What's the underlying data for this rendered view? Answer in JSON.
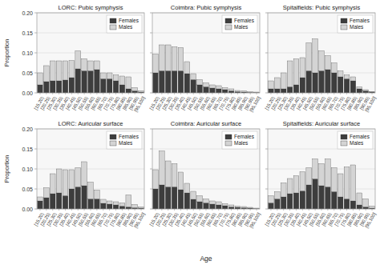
{
  "chart_data": [
    {
      "type": "bar",
      "stacked": true,
      "title": "LORC: Pubic symphysis",
      "y_label": "Proportion",
      "categories": [
        "[15,20)",
        "[20,25)",
        "[25,30)",
        "[30,35)",
        "[35,40)",
        "[40,45)",
        "[45,50)",
        "[50,55)",
        "[55,60)",
        "[60,65)",
        "[65,70)",
        "[70,75)",
        "[75,80)",
        "[80,85)",
        "[85,90)",
        "[90,95)",
        "[95,100]"
      ],
      "series": [
        {
          "name": "Females",
          "color": "#3d3d3d",
          "values": [
            0.02,
            0.028,
            0.03,
            0.03,
            0.032,
            0.038,
            0.06,
            0.055,
            0.055,
            0.058,
            0.035,
            0.035,
            0.03,
            0.02,
            0.01,
            0.005,
            0.002
          ]
        },
        {
          "name": "Males",
          "color": "#d4d4d4",
          "values": [
            0.03,
            0.04,
            0.05,
            0.05,
            0.048,
            0.043,
            0.045,
            0.03,
            0.025,
            0.022,
            0.015,
            0.015,
            0.015,
            0.022,
            0.03,
            0.008,
            0.003
          ]
        }
      ],
      "ylim": [
        0,
        0.2
      ],
      "yticks": [
        {
          "value": 0,
          "label": "0.00"
        },
        0.05,
        {
          "value": 0.1,
          "label": "0.10"
        },
        0.15,
        {
          "value": 0.2,
          "label": "0.20"
        }
      ],
      "grid": true,
      "legend": "upper right"
    },
    {
      "type": "bar",
      "stacked": true,
      "title": "Coimbra: Pubic symphysis",
      "tick_labels": "x",
      "categories": [
        "[15,20)",
        "[20,25)",
        "[25,30)",
        "[30,35)",
        "[35,40)",
        "[40,45)",
        "[45,50)",
        "[50,55)",
        "[55,60)",
        "[60,65)",
        "[65,70)",
        "[70,75)",
        "[75,80)",
        "[80,85)",
        "[85,90)",
        "[90,95)",
        "[95,100]"
      ],
      "series": [
        {
          "name": "Females",
          "color": "#3d3d3d",
          "values": [
            0.05,
            0.055,
            0.055,
            0.055,
            0.055,
            0.048,
            0.033,
            0.02,
            0.015,
            0.012,
            0.01,
            0.008,
            0.005,
            0.003,
            0.002,
            0.001,
            0.001
          ]
        },
        {
          "name": "Males",
          "color": "#d4d4d4",
          "values": [
            0.047,
            0.065,
            0.065,
            0.06,
            0.058,
            0.03,
            0.015,
            0.013,
            0.01,
            0.008,
            0.008,
            0.005,
            0.005,
            0.003,
            0.003,
            0.002,
            0.001
          ]
        }
      ],
      "ylim": [
        0,
        0.2
      ],
      "yticks": [
        0,
        0.05,
        0.1,
        0.15,
        0.2
      ],
      "grid": true,
      "legend": "upper right"
    },
    {
      "type": "bar",
      "stacked": true,
      "title": "Spitalfields: Pubic symphysis",
      "tick_labels": "x",
      "categories": [
        "[15,20)",
        "[20,25)",
        "[25,30)",
        "[30,35)",
        "[35,40)",
        "[40,45)",
        "[45,50)",
        "[50,55)",
        "[55,60)",
        "[60,65)",
        "[65,70)",
        "[70,75)",
        "[75,80)",
        "[80,85)",
        "[85,90)",
        "[90,95)",
        "[95,100]"
      ],
      "series": [
        {
          "name": "Females",
          "color": "#3d3d3d",
          "values": [
            0.01,
            0.01,
            0.01,
            0.015,
            0.02,
            0.038,
            0.055,
            0.05,
            0.055,
            0.058,
            0.05,
            0.04,
            0.035,
            0.03,
            0.01,
            0.005,
            0.002
          ]
        },
        {
          "name": "Males",
          "color": "#d4d4d4",
          "values": [
            0.02,
            0.028,
            0.04,
            0.065,
            0.065,
            0.05,
            0.07,
            0.085,
            0.05,
            0.035,
            0.025,
            0.015,
            0.01,
            0.01,
            0.005,
            0.003,
            0.001
          ]
        }
      ],
      "ylim": [
        0,
        0.2
      ],
      "yticks": [
        0,
        0.05,
        0.1,
        0.15,
        0.2
      ],
      "grid": true,
      "legend": "upper right"
    },
    {
      "type": "bar",
      "stacked": true,
      "title": "LORC: Auricular surface",
      "y_label": "Proportion",
      "categories": [
        "[15,20)",
        "[20,25)",
        "[25,30)",
        "[30,35)",
        "[35,40)",
        "[40,45)",
        "[45,50)",
        "[50,55)",
        "[55,60)",
        "[60,65)",
        "[65,70)",
        "[70,75)",
        "[75,80)",
        "[80,85)",
        "[85,90)",
        "[90,95)",
        "[95,100]"
      ],
      "series": [
        {
          "name": "Females",
          "color": "#3d3d3d",
          "values": [
            0.02,
            0.028,
            0.038,
            0.04,
            0.033,
            0.05,
            0.055,
            0.058,
            0.025,
            0.025,
            0.014,
            0.012,
            0.01,
            0.007,
            0.005,
            0.003,
            0.002
          ]
        },
        {
          "name": "Males",
          "color": "#d4d4d4",
          "values": [
            0.01,
            0.025,
            0.05,
            0.06,
            0.065,
            0.048,
            0.048,
            0.06,
            0.042,
            0.022,
            0.01,
            0.008,
            0.008,
            0.008,
            0.03,
            0.008,
            0.003
          ]
        }
      ],
      "ylim": [
        0,
        0.2
      ],
      "yticks": [
        {
          "value": 0,
          "label": "0.00"
        },
        0.05,
        {
          "value": 0.1,
          "label": "0.10"
        },
        0.15,
        {
          "value": 0.2,
          "label": "0.20"
        }
      ],
      "grid": true,
      "legend": "upper right"
    },
    {
      "type": "bar",
      "stacked": true,
      "title": "Coimbra: Auricular surface",
      "x_label": "Age",
      "tick_labels": "x",
      "categories": [
        "[15,20)",
        "[20,25)",
        "[25,30)",
        "[30,35)",
        "[35,40)",
        "[40,45)",
        "[45,50)",
        "[50,55)",
        "[55,60)",
        "[60,65)",
        "[65,70)",
        "[70,75)",
        "[75,80)",
        "[80,85)",
        "[85,90)",
        "[90,95)",
        "[95,100]"
      ],
      "series": [
        {
          "name": "Females",
          "color": "#3d3d3d",
          "values": [
            0.05,
            0.06,
            0.055,
            0.055,
            0.048,
            0.04,
            0.024,
            0.018,
            0.015,
            0.012,
            0.01,
            0.008,
            0.005,
            0.004,
            0.003,
            0.002,
            0.001
          ]
        },
        {
          "name": "Males",
          "color": "#d4d4d4",
          "values": [
            0.048,
            0.085,
            0.065,
            0.058,
            0.044,
            0.024,
            0.02,
            0.015,
            0.01,
            0.008,
            0.008,
            0.005,
            0.005,
            0.003,
            0.003,
            0.002,
            0.001
          ]
        }
      ],
      "ylim": [
        0,
        0.2
      ],
      "yticks": [
        0,
        0.05,
        0.1,
        0.15,
        0.2
      ],
      "grid": true,
      "legend": "upper right"
    },
    {
      "type": "bar",
      "stacked": true,
      "title": "Spitalfields: Auricular surface",
      "tick_labels": "x",
      "categories": [
        "[15,20)",
        "[20,25)",
        "[25,30)",
        "[30,35)",
        "[35,40)",
        "[40,45)",
        "[45,50)",
        "[50,55)",
        "[55,60)",
        "[60,65)",
        "[65,70)",
        "[70,75)",
        "[75,80)",
        "[80,85)",
        "[85,90)",
        "[90,95)",
        "[95,100]"
      ],
      "series": [
        {
          "name": "Females",
          "color": "#3d3d3d",
          "values": [
            0.015,
            0.025,
            0.03,
            0.038,
            0.04,
            0.045,
            0.06,
            0.075,
            0.058,
            0.055,
            0.043,
            0.03,
            0.025,
            0.02,
            0.01,
            0.005,
            0.002
          ]
        },
        {
          "name": "Males",
          "color": "#d4d4d4",
          "values": [
            0.018,
            0.018,
            0.035,
            0.038,
            0.043,
            0.048,
            0.043,
            0.05,
            0.055,
            0.07,
            0.06,
            0.058,
            0.08,
            0.09,
            0.03,
            0.02,
            0.005
          ]
        }
      ],
      "ylim": [
        0,
        0.2
      ],
      "yticks": [
        0,
        0.05,
        0.1,
        0.15,
        0.2
      ],
      "grid": true,
      "legend": "upper right"
    }
  ]
}
